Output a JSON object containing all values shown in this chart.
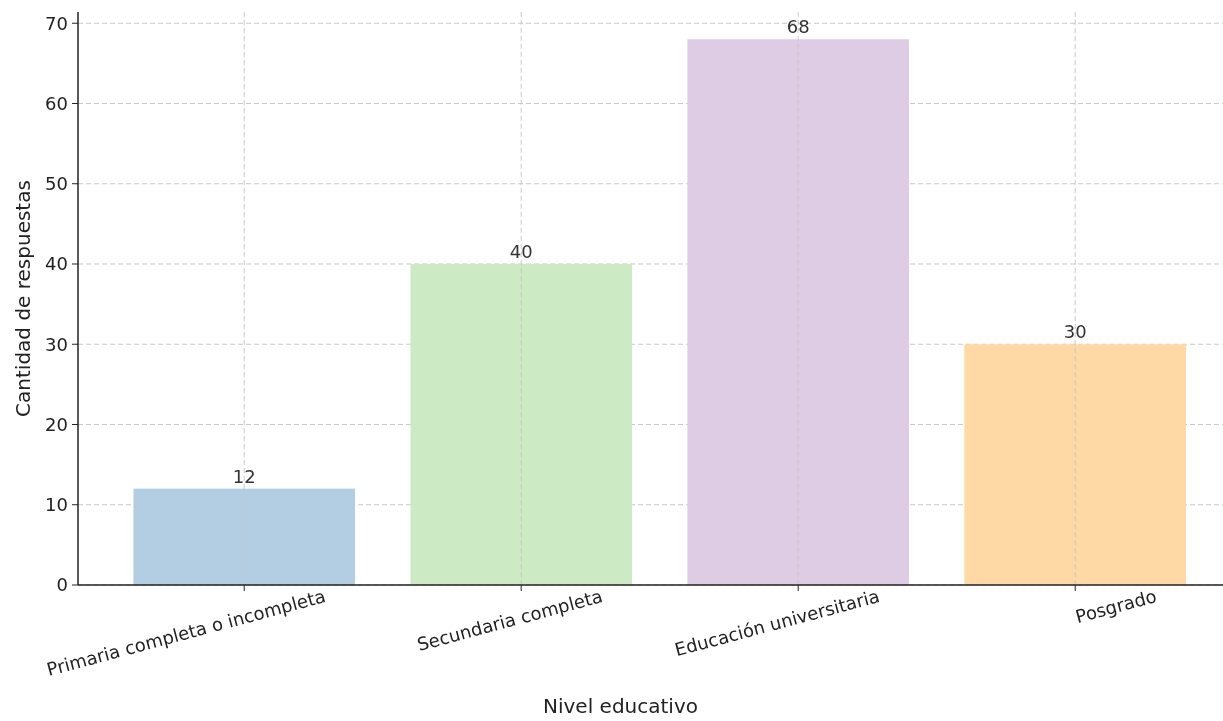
{
  "chart_data": {
    "type": "bar",
    "xlabel": "Nivel educativo",
    "ylabel": "Cantidad de respuestas",
    "categories": [
      "Primaria completa o incompleta",
      "Secundaria completa",
      "Educación universitaria",
      "Posgrado"
    ],
    "values": [
      12,
      40,
      68,
      30
    ],
    "colors": [
      "#b3cde3",
      "#ccebc5",
      "#decbe4",
      "#fed9a6"
    ],
    "ylim": [
      0,
      71.4
    ],
    "yticks": [
      0,
      10,
      20,
      30,
      40,
      50,
      60,
      70
    ],
    "grid": true,
    "data_labels": true
  }
}
